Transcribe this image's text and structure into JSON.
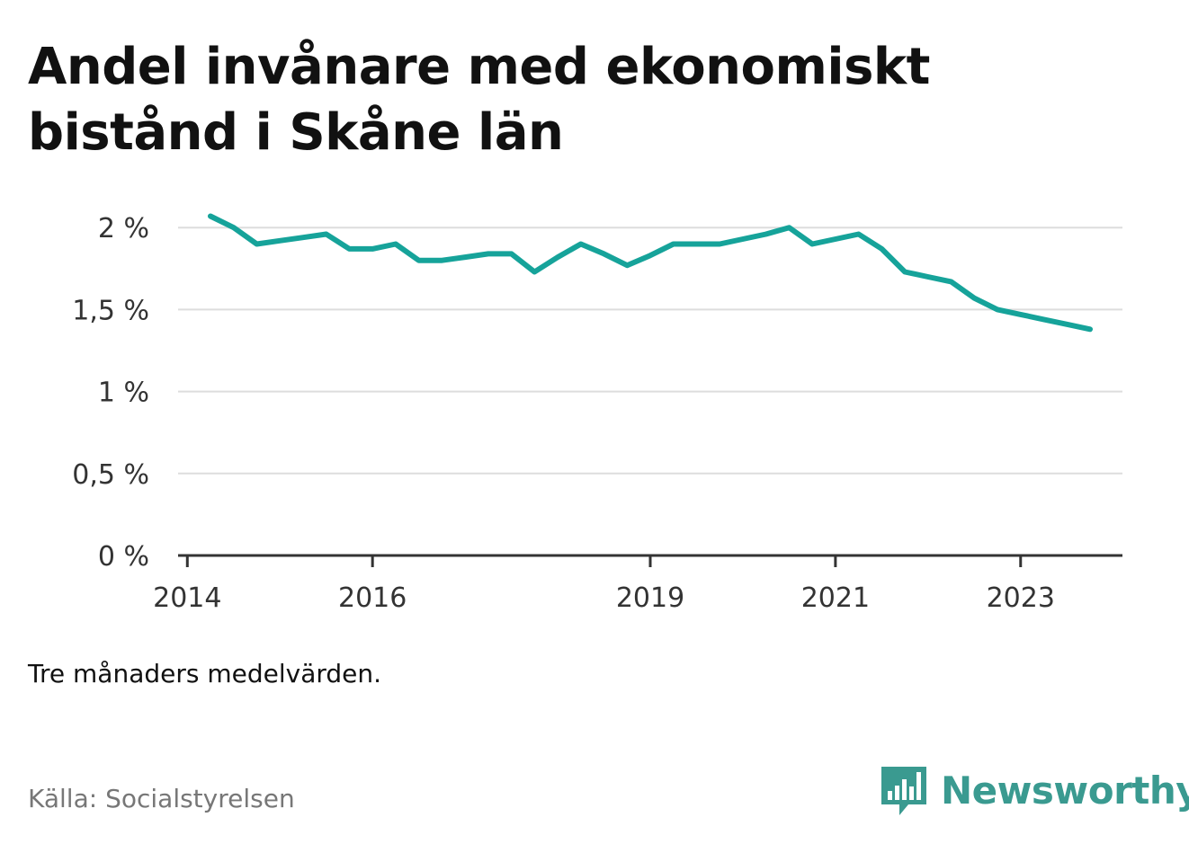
{
  "title": "Andel invånare med ekonomiskt bistånd i Skåne län",
  "note": "Tre månaders medelvärden.",
  "source": "Källa: Socialstyrelsen",
  "brand": {
    "name": "Newsworthy",
    "icon": "bar-chart-speech-bubble-icon"
  },
  "colors": {
    "line": "#16a39a",
    "grid": "#dddddd",
    "axis": "#333333",
    "brand": "#3a9a90"
  },
  "chart_data": {
    "type": "line",
    "title": "Andel invånare med ekonomiskt bistånd i Skåne län",
    "xlabel": "",
    "ylabel": "",
    "unit": "%",
    "x_ticks": [
      2014,
      2016,
      2019,
      2021,
      2023
    ],
    "y_ticks": [
      0,
      0.5,
      1,
      1.5,
      2
    ],
    "y_tick_labels": [
      "0 %",
      "0,5 %",
      "1 %",
      "1,5 %",
      "2 %"
    ],
    "xlim": [
      2013.9,
      2024.1
    ],
    "ylim": [
      0,
      2.1
    ],
    "grid": true,
    "series": [
      {
        "x": [
          "2014-04",
          "2014-07",
          "2014-10",
          "2015-01",
          "2015-04",
          "2015-07",
          "2015-10",
          "2016-01",
          "2016-04",
          "2016-07",
          "2016-10",
          "2017-01",
          "2017-04",
          "2017-07",
          "2017-10",
          "2018-01",
          "2018-04",
          "2018-07",
          "2018-10",
          "2019-01",
          "2019-04",
          "2019-07",
          "2019-10",
          "2020-01",
          "2020-04",
          "2020-07",
          "2020-10",
          "2021-01",
          "2021-04",
          "2021-07",
          "2021-10",
          "2022-01",
          "2022-04",
          "2022-07",
          "2022-10",
          "2023-01",
          "2023-04",
          "2023-07",
          "2023-10"
        ],
        "values": [
          2.07,
          2.0,
          1.9,
          1.92,
          1.94,
          1.96,
          1.87,
          1.87,
          1.9,
          1.8,
          1.8,
          1.82,
          1.84,
          1.84,
          1.73,
          1.82,
          1.9,
          1.84,
          1.77,
          1.83,
          1.9,
          1.9,
          1.9,
          1.93,
          1.96,
          2.0,
          1.9,
          1.93,
          1.96,
          1.87,
          1.73,
          1.7,
          1.67,
          1.57,
          1.5,
          1.47,
          1.44,
          1.41,
          1.38
        ]
      }
    ]
  }
}
